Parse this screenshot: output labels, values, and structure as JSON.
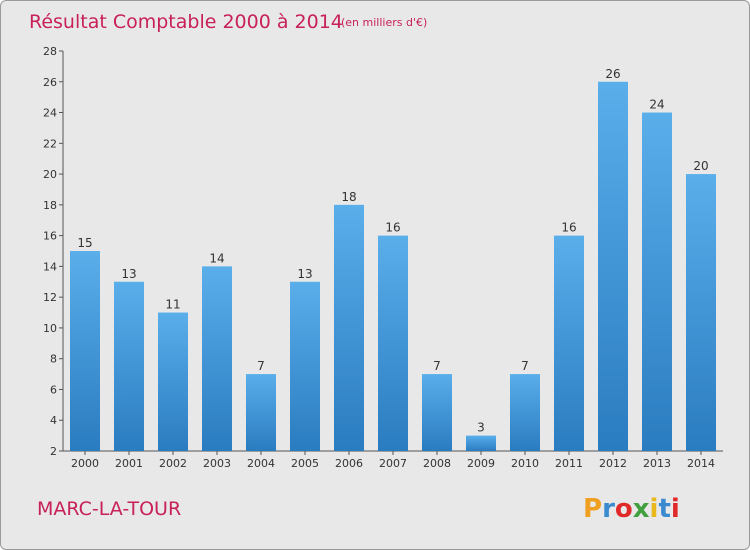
{
  "chart_data": {
    "type": "bar",
    "title": "Résultat Comptable 2000 à 2014",
    "subtitle": "(en milliers d'€)",
    "categories": [
      "2000",
      "2001",
      "2002",
      "2003",
      "2004",
      "2005",
      "2006",
      "2007",
      "2008",
      "2009",
      "2010",
      "2011",
      "2012",
      "2013",
      "2014"
    ],
    "values": [
      15,
      13,
      11,
      14,
      7,
      13,
      18,
      16,
      7,
      3,
      7,
      16,
      26,
      24,
      20
    ],
    "ylim": [
      2,
      28
    ],
    "yticks": [
      2,
      4,
      6,
      8,
      10,
      12,
      14,
      16,
      18,
      20,
      22,
      24,
      26,
      28
    ],
    "xlabel": "",
    "ylabel": "",
    "grid": false,
    "bar_color_top": "#5aaeea",
    "bar_color_bottom": "#2a7cc0"
  },
  "footer": {
    "town": "MARC-LA-TOUR",
    "logo_letters": [
      "P",
      "r",
      "o",
      "x",
      "i",
      "t",
      "i"
    ],
    "logo_colors": [
      "#f0a020",
      "#3a8ad0",
      "#e02a2a",
      "#40a040",
      "#e8b81c",
      "#3a8ad0",
      "#e02a2a"
    ]
  },
  "colors": {
    "accent": "#c8215a",
    "background": "#e8e8e8"
  }
}
